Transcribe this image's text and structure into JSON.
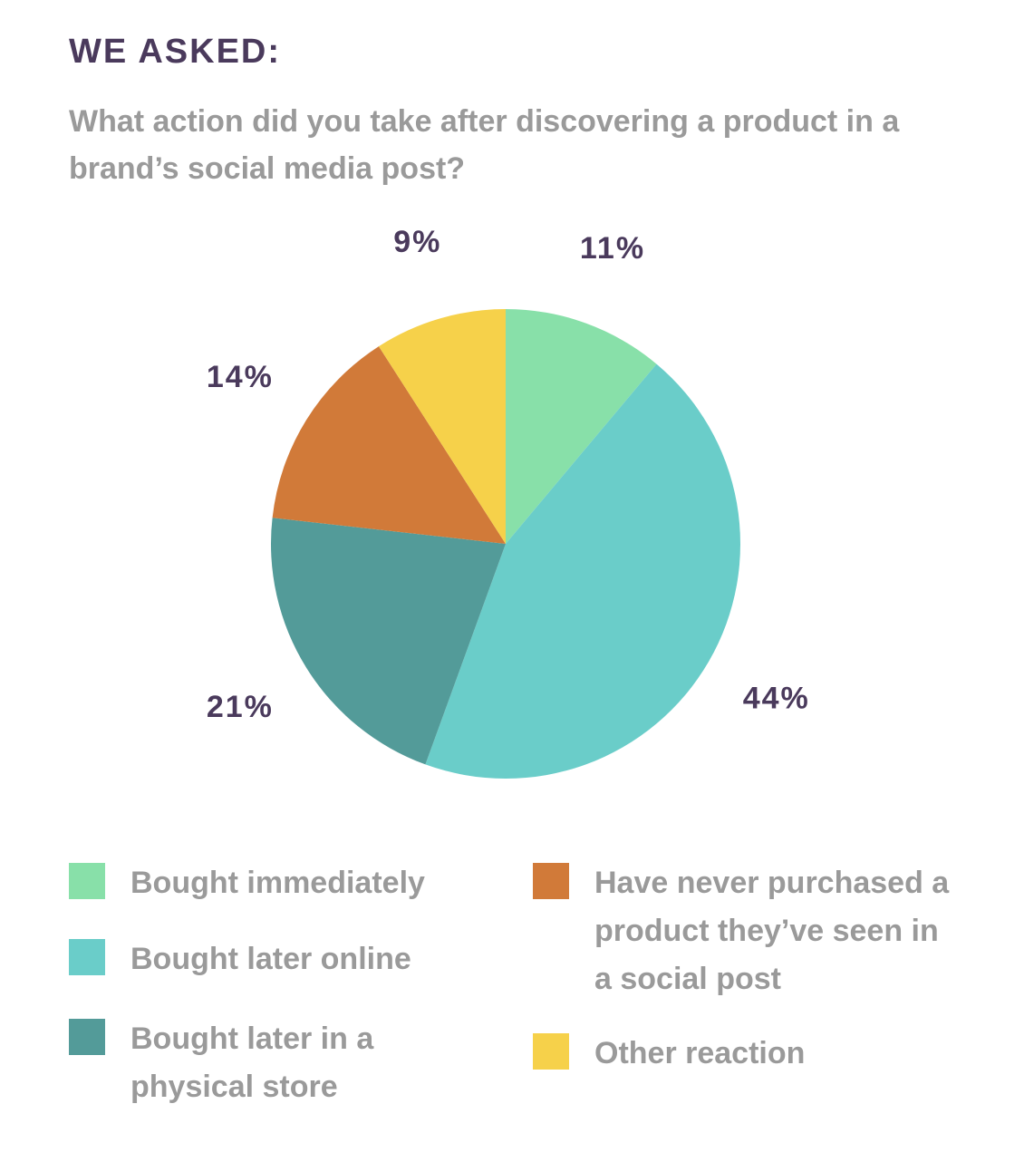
{
  "header": {
    "kicker": "WE ASKED:",
    "question": "What action did you take after discovering a product in a brand’s social media post?"
  },
  "legend": [
    {
      "label": "Bought immediately",
      "color": "#88e0a9"
    },
    {
      "label": "Bought later online",
      "color": "#6acdc9"
    },
    {
      "label": "Bought later in a physical store",
      "color": "#539b99"
    },
    {
      "label": "Have never purchased a product they’ve seen in a social post",
      "color": "#d17a39"
    },
    {
      "label": "Other reaction",
      "color": "#f6d14a"
    }
  ],
  "chart_data": {
    "type": "pie",
    "title": "",
    "categories": [
      "Bought immediately",
      "Bought later online",
      "Bought later in a physical store",
      "Have never purchased a product they’ve seen in a social post",
      "Other reaction"
    ],
    "values": [
      11,
      44,
      21,
      14,
      9
    ],
    "value_labels": [
      "11%",
      "44%",
      "21%",
      "14%",
      "9%"
    ],
    "colors": [
      "#88e0a9",
      "#6acdc9",
      "#539b99",
      "#d17a39",
      "#f6d14a"
    ],
    "legend_position": "bottom",
    "start": "12 o'clock, clockwise"
  }
}
